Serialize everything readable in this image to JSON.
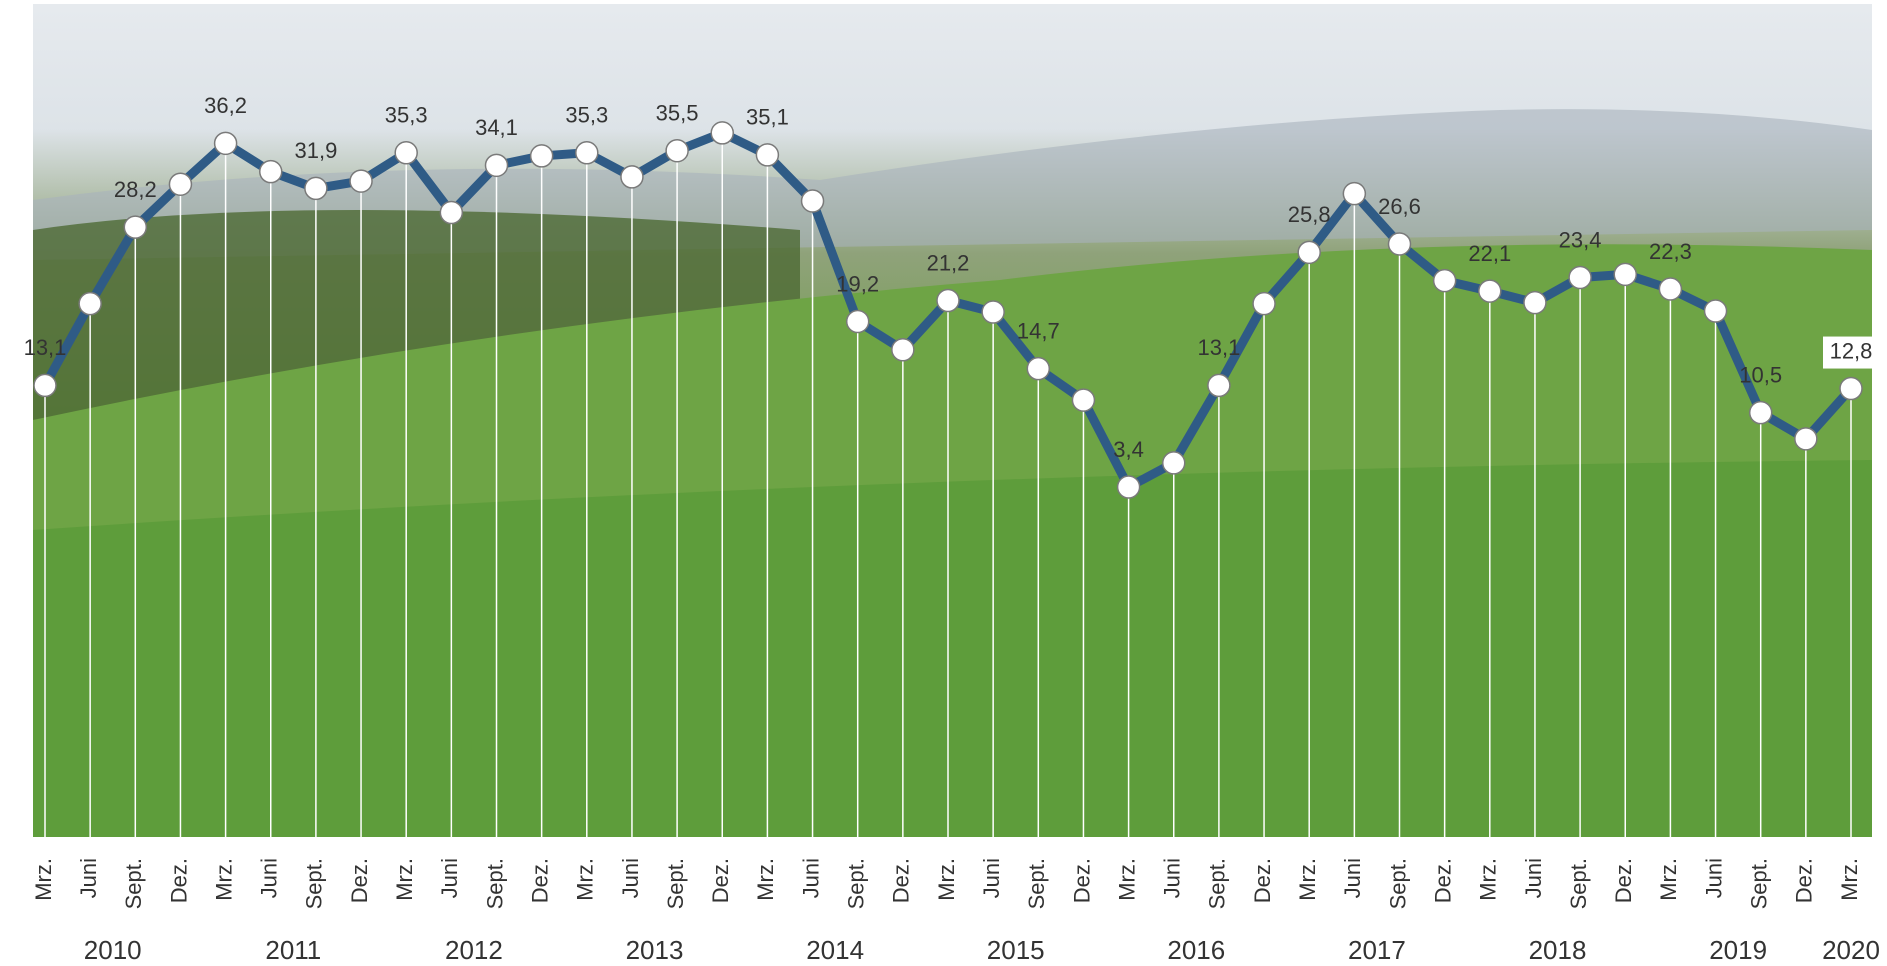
{
  "chart_data": {
    "type": "line",
    "categories": [
      "Mrz.",
      "Juni",
      "Sept.",
      "Dez.",
      "Mrz.",
      "Juni",
      "Sept.",
      "Dez.",
      "Mrz.",
      "Juni",
      "Sept.",
      "Dez.",
      "Mrz.",
      "Juni",
      "Sept.",
      "Dez.",
      "Mrz.",
      "Juni",
      "Sept.",
      "Dez.",
      "Mrz.",
      "Juni",
      "Sept.",
      "Dez.",
      "Mrz.",
      "Juni",
      "Sept.",
      "Dez.",
      "Mrz.",
      "Juni",
      "Sept.",
      "Dez.",
      "Mrz.",
      "Juni",
      "Sept.",
      "Dez.",
      "Mrz.",
      "Juni",
      "Sept.",
      "Dez.",
      "Mrz."
    ],
    "years": [
      "2010",
      "2011",
      "2012",
      "2013",
      "2014",
      "2015",
      "2016",
      "2017",
      "2018",
      "2019",
      "2020"
    ],
    "values": [
      13.1,
      20.9,
      28.2,
      32.3,
      36.2,
      33.5,
      31.9,
      32.6,
      35.3,
      29.6,
      34.1,
      35.0,
      35.3,
      33.0,
      35.5,
      37.2,
      35.1,
      30.7,
      19.2,
      16.5,
      21.2,
      20.1,
      14.7,
      11.7,
      3.4,
      5.7,
      13.1,
      20.9,
      25.8,
      31.4,
      26.6,
      23.1,
      22.1,
      21.0,
      23.4,
      23.7,
      22.3,
      20.2,
      10.5,
      8.0,
      12.8
    ],
    "value_labels": [
      "13,1",
      null,
      "28,2",
      null,
      "36,2",
      null,
      "31,9",
      null,
      "35,3",
      null,
      "34,1",
      null,
      "35,3",
      null,
      "35,5",
      null,
      "35,1",
      null,
      "19,2",
      null,
      "21,2",
      null,
      "14,7",
      null,
      "3,4",
      null,
      "13,1",
      null,
      "25,8",
      null,
      "26,6",
      null,
      "22,1",
      null,
      "23,4",
      null,
      "22,3",
      null,
      "10,5",
      null,
      "12,8"
    ],
    "color": "#2f5b86",
    "ylim": [
      -30,
      49.5
    ]
  }
}
